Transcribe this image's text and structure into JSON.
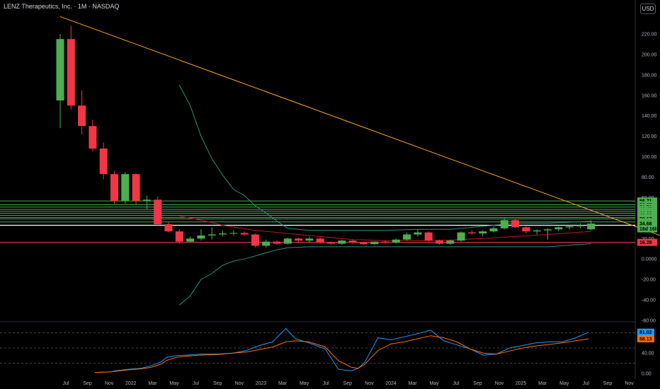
{
  "header": {
    "title": "LENZ Therapeutics, Inc. · 1M · NASDAQ",
    "currency": "USD"
  },
  "colors": {
    "up": "#4caf50",
    "down": "#f23645",
    "trendline": "#f5a623",
    "bands": "#2f8f7a",
    "hlines_green": "#4caf50",
    "support": "#f23645",
    "resistance": "#ffffff",
    "osc_k": "#2196f3",
    "osc_d": "#ff6d00"
  },
  "chart_data": [
    {
      "type": "candlestick",
      "title": "LENZ Therapeutics, Inc. · 1M · NASDAQ",
      "price_axis": {
        "ylim": [
          -60,
          240
        ],
        "ticks": [
          220,
          200,
          180,
          160,
          140,
          120,
          100,
          80,
          60,
          40,
          20,
          0,
          -20,
          -40,
          -60
        ],
        "tick_labels": [
          "220.00",
          "200.00",
          "180.00",
          "160.00",
          "140.00",
          "120.00",
          "100.00",
          "80.00",
          "60.00",
          "40.00",
          "20.00",
          "0.0000",
          "-20.00",
          "-40.00",
          "-60.00"
        ]
      },
      "time_axis": {
        "labels": [
          "Jul",
          "Sep",
          "Nov",
          "2022",
          "Mar",
          "May",
          "Jul",
          "Sep",
          "Nov",
          "2023",
          "Mar",
          "May",
          "Jul",
          "Sep",
          "Nov",
          "2024",
          "Mar",
          "May",
          "Jul",
          "Sep",
          "Nov",
          "2025",
          "Mar",
          "May",
          "Jul",
          "Sep",
          "Nov"
        ]
      },
      "candles": [
        {
          "month": "2021-07",
          "o": 155,
          "h": 220,
          "l": 128,
          "c": 215
        },
        {
          "month": "2021-08",
          "o": 215,
          "h": 228,
          "l": 146,
          "c": 150
        },
        {
          "month": "2021-09",
          "o": 150,
          "h": 165,
          "l": 122,
          "c": 130
        },
        {
          "month": "2021-10",
          "o": 130,
          "h": 136,
          "l": 105,
          "c": 108
        },
        {
          "month": "2021-11",
          "o": 108,
          "h": 114,
          "l": 78,
          "c": 83
        },
        {
          "month": "2021-12",
          "o": 83,
          "h": 86,
          "l": 54,
          "c": 57
        },
        {
          "month": "2022-01",
          "o": 57,
          "h": 85,
          "l": 54,
          "c": 83
        },
        {
          "month": "2022-02",
          "o": 83,
          "h": 84,
          "l": 53,
          "c": 57
        },
        {
          "month": "2022-03",
          "o": 57,
          "h": 62,
          "l": 49,
          "c": 58
        },
        {
          "month": "2022-04",
          "o": 58,
          "h": 61,
          "l": 32,
          "c": 34
        },
        {
          "month": "2022-05",
          "o": 34,
          "h": 36,
          "l": 26,
          "c": 27
        },
        {
          "month": "2022-06",
          "o": 27,
          "h": 29,
          "l": 15,
          "c": 17
        },
        {
          "month": "2022-07",
          "o": 17,
          "h": 22,
          "l": 16,
          "c": 20
        },
        {
          "month": "2022-08",
          "o": 20,
          "h": 29,
          "l": 18,
          "c": 23
        },
        {
          "month": "2022-09",
          "o": 23,
          "h": 31,
          "l": 19,
          "c": 24
        },
        {
          "month": "2022-10",
          "o": 24,
          "h": 28,
          "l": 22,
          "c": 25
        },
        {
          "month": "2022-11",
          "o": 25,
          "h": 28,
          "l": 23,
          "c": 25.5
        },
        {
          "month": "2022-12",
          "o": 25.5,
          "h": 27,
          "l": 23,
          "c": 24
        },
        {
          "month": "2023-01",
          "o": 24,
          "h": 25,
          "l": 11,
          "c": 13
        },
        {
          "month": "2023-02",
          "o": 13,
          "h": 19,
          "l": 11,
          "c": 17
        },
        {
          "month": "2023-03",
          "o": 17,
          "h": 18,
          "l": 14,
          "c": 15
        },
        {
          "month": "2023-04",
          "o": 15,
          "h": 21,
          "l": 14,
          "c": 20
        },
        {
          "month": "2023-05",
          "o": 20,
          "h": 21,
          "l": 16,
          "c": 18
        },
        {
          "month": "2023-06",
          "o": 18,
          "h": 22,
          "l": 16,
          "c": 20
        },
        {
          "month": "2023-07",
          "o": 20,
          "h": 21,
          "l": 15,
          "c": 16
        },
        {
          "month": "2023-08",
          "o": 16,
          "h": 17,
          "l": 14,
          "c": 15
        },
        {
          "month": "2023-09",
          "o": 15,
          "h": 19,
          "l": 14,
          "c": 18
        },
        {
          "month": "2023-10",
          "o": 18,
          "h": 19,
          "l": 15,
          "c": 16
        },
        {
          "month": "2023-11",
          "o": 16,
          "h": 17,
          "l": 14,
          "c": 14.5
        },
        {
          "month": "2023-12",
          "o": 14.5,
          "h": 17,
          "l": 14,
          "c": 17
        },
        {
          "month": "2024-01",
          "o": 17,
          "h": 18,
          "l": 15,
          "c": 16
        },
        {
          "month": "2024-02",
          "o": 16,
          "h": 20,
          "l": 15,
          "c": 19
        },
        {
          "month": "2024-03",
          "o": 19,
          "h": 26,
          "l": 18,
          "c": 24
        },
        {
          "month": "2024-04",
          "o": 24,
          "h": 29,
          "l": 22,
          "c": 26
        },
        {
          "month": "2024-05",
          "o": 26,
          "h": 27,
          "l": 17,
          "c": 18
        },
        {
          "month": "2024-06",
          "o": 18,
          "h": 19,
          "l": 14,
          "c": 15
        },
        {
          "month": "2024-07",
          "o": 15,
          "h": 19,
          "l": 14,
          "c": 18
        },
        {
          "month": "2024-08",
          "o": 18,
          "h": 27,
          "l": 17,
          "c": 26
        },
        {
          "month": "2024-09",
          "o": 26,
          "h": 28,
          "l": 24,
          "c": 25
        },
        {
          "month": "2024-10",
          "o": 25,
          "h": 28,
          "l": 22,
          "c": 27
        },
        {
          "month": "2024-11",
          "o": 27,
          "h": 32,
          "l": 26,
          "c": 30
        },
        {
          "month": "2024-12",
          "o": 30,
          "h": 40,
          "l": 29,
          "c": 38
        },
        {
          "month": "2025-01",
          "o": 38,
          "h": 39,
          "l": 30,
          "c": 31
        },
        {
          "month": "2025-02",
          "o": 31,
          "h": 32,
          "l": 25,
          "c": 27
        },
        {
          "month": "2025-03",
          "o": 27,
          "h": 29,
          "l": 24,
          "c": 28
        },
        {
          "month": "2025-04",
          "o": 28,
          "h": 30,
          "l": 19,
          "c": 29
        },
        {
          "month": "2025-05",
          "o": 29,
          "h": 32,
          "l": 27,
          "c": 31
        },
        {
          "month": "2025-06",
          "o": 31,
          "h": 33,
          "l": 29,
          "c": 32
        },
        {
          "month": "2025-07",
          "o": 32,
          "h": 35,
          "l": 30,
          "c": 33
        },
        {
          "month": "2025-08",
          "o": 29,
          "h": 38,
          "l": 28,
          "c": 34.68
        }
      ],
      "trendline": {
        "from": {
          "month": "2021-07",
          "value": 237
        },
        "to": {
          "month": "2025-12",
          "value": 17
        }
      },
      "green_levels": [
        56.71,
        53.05,
        50.78,
        48.45,
        46.56,
        44.66,
        42.62,
        40.58,
        39.17,
        36.31
      ],
      "resistance_level": 33,
      "support_level": 16.28,
      "band_upper": [
        {
          "month": "2022-06",
          "value": 170
        },
        {
          "month": "2022-07",
          "value": 150
        },
        {
          "month": "2022-08",
          "value": 120
        },
        {
          "month": "2022-09",
          "value": 98
        },
        {
          "month": "2022-10",
          "value": 82
        },
        {
          "month": "2022-11",
          "value": 68
        },
        {
          "month": "2022-12",
          "value": 62
        },
        {
          "month": "2023-01",
          "value": 52
        },
        {
          "month": "2023-02",
          "value": 45
        },
        {
          "month": "2023-03",
          "value": 37
        },
        {
          "month": "2023-04",
          "value": 30
        },
        {
          "month": "2023-06",
          "value": 28
        },
        {
          "month": "2023-08",
          "value": 28
        },
        {
          "month": "2023-10",
          "value": 28
        },
        {
          "month": "2024-01",
          "value": 28
        },
        {
          "month": "2024-04",
          "value": 29
        },
        {
          "month": "2024-07",
          "value": 29
        },
        {
          "month": "2024-10",
          "value": 32
        },
        {
          "month": "2025-01",
          "value": 35
        },
        {
          "month": "2025-04",
          "value": 35
        },
        {
          "month": "2025-08",
          "value": 37
        }
      ],
      "band_lower": [
        {
          "month": "2022-06",
          "value": -45
        },
        {
          "month": "2022-07",
          "value": -36
        },
        {
          "month": "2022-08",
          "value": -20
        },
        {
          "month": "2022-09",
          "value": -14
        },
        {
          "month": "2022-10",
          "value": -6
        },
        {
          "month": "2022-11",
          "value": -2
        },
        {
          "month": "2022-12",
          "value": 0
        },
        {
          "month": "2023-01",
          "value": 3
        },
        {
          "month": "2023-02",
          "value": 6
        },
        {
          "month": "2023-03",
          "value": 9
        },
        {
          "month": "2023-04",
          "value": 11
        },
        {
          "month": "2023-06",
          "value": 12
        },
        {
          "month": "2023-10",
          "value": 12
        },
        {
          "month": "2024-04",
          "value": 12
        },
        {
          "month": "2024-07",
          "value": 12
        },
        {
          "month": "2024-10",
          "value": 12
        },
        {
          "month": "2025-01",
          "value": 12
        },
        {
          "month": "2025-04",
          "value": 12
        },
        {
          "month": "2025-08",
          "value": 15
        }
      ],
      "ma": [
        {
          "month": "2022-06",
          "value": 42
        },
        {
          "month": "2022-08",
          "value": 38
        },
        {
          "month": "2022-10",
          "value": 33
        },
        {
          "month": "2023-01",
          "value": 28
        },
        {
          "month": "2023-04",
          "value": 25
        },
        {
          "month": "2023-07",
          "value": 22
        },
        {
          "month": "2023-10",
          "value": 19
        },
        {
          "month": "2024-01",
          "value": 18
        },
        {
          "month": "2024-04",
          "value": 18
        },
        {
          "month": "2024-07",
          "value": 18.5
        },
        {
          "month": "2024-10",
          "value": 20
        },
        {
          "month": "2025-01",
          "value": 22
        },
        {
          "month": "2025-04",
          "value": 24
        },
        {
          "month": "2025-08",
          "value": 27
        }
      ],
      "price_badges": [
        {
          "label": "56.71",
          "value": 56.71,
          "color": "#4caf50"
        },
        {
          "label": "53.05",
          "value": 53.05,
          "color": "#4caf50"
        },
        {
          "label": "50.78",
          "value": 50.78,
          "color": "#4caf50"
        },
        {
          "label": "48.45",
          "value": 48.45,
          "color": "#4caf50"
        },
        {
          "label": "46.56",
          "value": 46.56,
          "color": "#4caf50"
        },
        {
          "label": "44.66",
          "value": 44.66,
          "color": "#4caf50"
        },
        {
          "label": "42.62",
          "value": 42.62,
          "color": "#4caf50"
        },
        {
          "label": "40.58",
          "value": 40.58,
          "color": "#4caf50"
        },
        {
          "label": "39.17",
          "value": 39.17,
          "color": "#4caf50"
        },
        {
          "label": "36.31",
          "value": 36.31,
          "color": "#4caf50"
        },
        {
          "label": "34.68",
          "value": 34.68,
          "color": "#4caf50"
        },
        {
          "label": "18d 16h",
          "value": 29.5,
          "color": "#4caf50"
        },
        {
          "label": "16.28",
          "value": 16.28,
          "color": "#f23645"
        }
      ]
    },
    {
      "type": "line",
      "title": "",
      "ylim": [
        0,
        100
      ],
      "ticks": [
        80,
        40,
        0
      ],
      "tick_labels": [
        "80.00",
        "40.00",
        "0.00"
      ],
      "levels": [
        80,
        50,
        20
      ],
      "series": [
        {
          "values": [
            [
              12,
              2
            ],
            [
              17,
              3
            ],
            [
              18,
              5
            ],
            [
              22,
              8
            ],
            [
              26,
              10
            ],
            [
              29,
              15
            ],
            [
              32,
              22
            ],
            [
              34,
              32
            ],
            [
              37,
              35
            ],
            [
              40,
              36
            ],
            [
              44,
              38
            ],
            [
              49,
              38
            ],
            [
              54,
              40
            ],
            [
              58,
              45
            ],
            [
              62,
              55
            ],
            [
              66,
              62
            ],
            [
              70,
              88
            ],
            [
              73,
              68
            ],
            [
              77,
              60
            ],
            [
              82,
              48
            ],
            [
              86,
              8
            ],
            [
              90,
              5
            ],
            [
              92,
              10
            ],
            [
              94,
              22
            ],
            [
              98,
              70
            ],
            [
              102,
              66
            ],
            [
              106,
              72
            ],
            [
              110,
              78
            ],
            [
              114,
              85
            ],
            [
              118,
              64
            ],
            [
              122,
              56
            ],
            [
              126,
              48
            ],
            [
              130,
              36
            ],
            [
              134,
              38
            ],
            [
              138,
              50
            ],
            [
              142,
              55
            ],
            [
              146,
              60
            ],
            [
              150,
              62
            ],
            [
              154,
              62
            ],
            [
              158,
              70
            ],
            [
              162,
              81
            ]
          ]
        },
        {
          "values": [
            [
              12,
              2
            ],
            [
              17,
              3
            ],
            [
              18,
              4
            ],
            [
              22,
              7
            ],
            [
              26,
              9
            ],
            [
              29,
              12
            ],
            [
              32,
              18
            ],
            [
              34,
              26
            ],
            [
              37,
              32
            ],
            [
              40,
              34
            ],
            [
              44,
              36
            ],
            [
              49,
              37
            ],
            [
              54,
              40
            ],
            [
              58,
              42
            ],
            [
              62,
              47
            ],
            [
              66,
              52
            ],
            [
              70,
              62
            ],
            [
              73,
              64
            ],
            [
              77,
              62
            ],
            [
              82,
              52
            ],
            [
              86,
              25
            ],
            [
              90,
              12
            ],
            [
              92,
              10
            ],
            [
              94,
              18
            ],
            [
              98,
              45
            ],
            [
              102,
              58
            ],
            [
              106,
              62
            ],
            [
              110,
              68
            ],
            [
              114,
              74
            ],
            [
              118,
              70
            ],
            [
              122,
              62
            ],
            [
              126,
              48
            ],
            [
              130,
              40
            ],
            [
              134,
              38
            ],
            [
              138,
              44
            ],
            [
              142,
              50
            ],
            [
              146,
              54
            ],
            [
              150,
              57
            ],
            [
              154,
              60
            ],
            [
              158,
              64
            ],
            [
              162,
              68
            ]
          ]
        }
      ],
      "badges": [
        {
          "label": "81.02",
          "value": 81.02,
          "color": "#2196f3"
        },
        {
          "label": "68.13",
          "value": 68.13,
          "color": "#ff6d00"
        }
      ]
    }
  ]
}
